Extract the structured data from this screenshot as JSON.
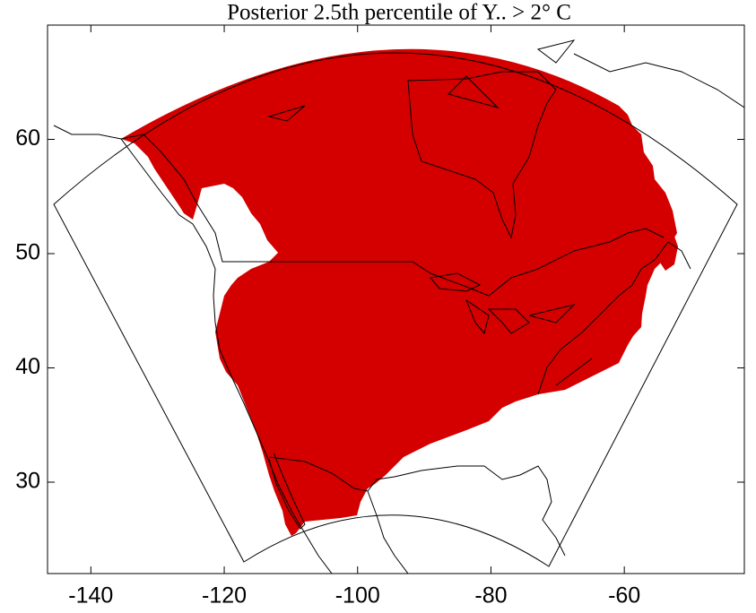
{
  "chart_data": {
    "type": "map",
    "title": "Posterior 2.5th percentile of Y.. > 2° C",
    "xlim": [
      -146.5,
      -42
    ],
    "ylim": [
      22,
      70
    ],
    "xticks": [
      -140,
      -120,
      -100,
      -80,
      -60
    ],
    "yticks": [
      30,
      40,
      50,
      60
    ]
  }
}
